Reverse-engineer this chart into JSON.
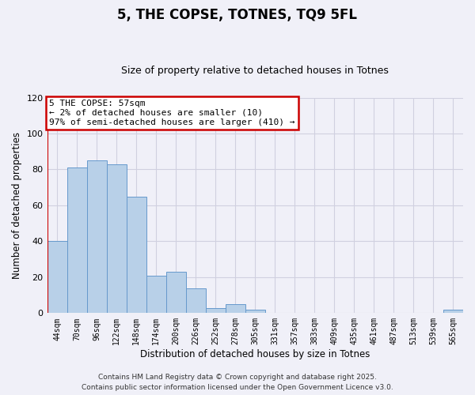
{
  "title": "5, THE COPSE, TOTNES, TQ9 5FL",
  "subtitle": "Size of property relative to detached houses in Totnes",
  "xlabel": "Distribution of detached houses by size in Totnes",
  "ylabel": "Number of detached properties",
  "categories": [
    "44sqm",
    "70sqm",
    "96sqm",
    "122sqm",
    "148sqm",
    "174sqm",
    "200sqm",
    "226sqm",
    "252sqm",
    "278sqm",
    "305sqm",
    "331sqm",
    "357sqm",
    "383sqm",
    "409sqm",
    "435sqm",
    "461sqm",
    "487sqm",
    "513sqm",
    "539sqm",
    "565sqm"
  ],
  "values": [
    40,
    81,
    85,
    83,
    65,
    21,
    23,
    14,
    3,
    5,
    2,
    0,
    0,
    0,
    0,
    0,
    0,
    0,
    0,
    0,
    2
  ],
  "bar_color": "#b8d0e8",
  "bar_edgecolor": "#6699cc",
  "ylim": [
    0,
    120
  ],
  "yticks": [
    0,
    20,
    40,
    60,
    80,
    100,
    120
  ],
  "property_line_color": "#cc0000",
  "annotation_title": "5 THE COPSE: 57sqm",
  "annotation_line1": "← 2% of detached houses are smaller (10)",
  "annotation_line2": "97% of semi-detached houses are larger (410) →",
  "annotation_box_edgecolor": "#cc0000",
  "footer_line1": "Contains HM Land Registry data © Crown copyright and database right 2025.",
  "footer_line2": "Contains public sector information licensed under the Open Government Licence v3.0.",
  "background_color": "#f0f0f8",
  "grid_color": "#d0d0e0",
  "title_fontsize": 12,
  "subtitle_fontsize": 9,
  "axis_label_fontsize": 8.5,
  "tick_fontsize": 7,
  "annotation_fontsize": 8,
  "footer_fontsize": 6.5
}
